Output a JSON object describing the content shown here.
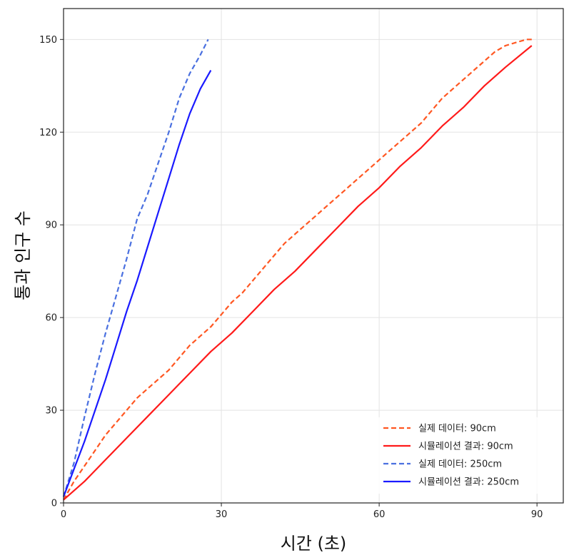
{
  "chart_data": {
    "type": "line",
    "title": "",
    "xlabel": "시간 (초)",
    "ylabel": "통과 인구 수",
    "xlim": [
      0,
      95
    ],
    "ylim": [
      0,
      160
    ],
    "xticks": [
      0,
      30,
      60,
      90
    ],
    "yticks": [
      0,
      30,
      60,
      90,
      120,
      150
    ],
    "xtick_labels": [
      "0",
      "30",
      "60",
      "90"
    ],
    "ytick_labels": [
      "0",
      "30",
      "60",
      "90",
      "120",
      "150"
    ],
    "grid": true,
    "legend_position": "bottom-right",
    "series": [
      {
        "name": "실제 데이터: 90cm",
        "color": "#ff5722",
        "linestyle": "dashed",
        "x": [
          0,
          2,
          4,
          6,
          8,
          10,
          12,
          14,
          16,
          18,
          20,
          22,
          24,
          26,
          28,
          30,
          32,
          34,
          36,
          38,
          40,
          42,
          44,
          46,
          48,
          50,
          52,
          54,
          56,
          58,
          60,
          62,
          64,
          66,
          68,
          70,
          72,
          74,
          76,
          78,
          80,
          82,
          84,
          86,
          88,
          89
        ],
        "y": [
          1,
          7,
          12,
          17,
          22,
          26,
          30,
          34,
          37,
          40,
          43,
          47,
          51,
          54,
          57,
          61,
          65,
          68,
          72,
          76,
          80,
          84,
          87,
          90,
          93,
          96,
          99,
          102,
          105,
          108,
          111,
          114,
          117,
          120,
          123,
          127,
          131,
          134,
          137,
          140,
          143,
          146,
          148,
          149,
          150,
          150
        ]
      },
      {
        "name": "시뮬레이션 결과: 90cm",
        "color": "#ff1a1a",
        "linestyle": "solid",
        "x": [
          0,
          4,
          8,
          12,
          16,
          20,
          24,
          28,
          32,
          36,
          40,
          44,
          48,
          52,
          56,
          60,
          64,
          68,
          72,
          76,
          80,
          84,
          89
        ],
        "y": [
          1,
          7,
          14,
          21,
          28,
          35,
          42,
          49,
          55,
          62,
          69,
          75,
          82,
          89,
          96,
          102,
          109,
          115,
          122,
          128,
          135,
          141,
          148
        ]
      },
      {
        "name": "실제 데이터: 250cm",
        "color": "#4a70e0",
        "linestyle": "dashed",
        "x": [
          0,
          2,
          4,
          6,
          8,
          10,
          12,
          14,
          16,
          18,
          20,
          22,
          24,
          26,
          27.5
        ],
        "y": [
          2,
          13,
          28,
          42,
          55,
          67,
          79,
          92,
          100,
          110,
          120,
          131,
          139,
          145,
          150
        ]
      },
      {
        "name": "시뮬레이션 결과: 250cm",
        "color": "#1a1aff",
        "linestyle": "solid",
        "x": [
          0,
          2,
          4,
          6,
          8,
          10,
          12,
          14,
          16,
          18,
          20,
          22,
          24,
          26,
          28
        ],
        "y": [
          2,
          11,
          20,
          30,
          40,
          51,
          62,
          72,
          83,
          94,
          105,
          116,
          126,
          134,
          140
        ]
      }
    ]
  }
}
